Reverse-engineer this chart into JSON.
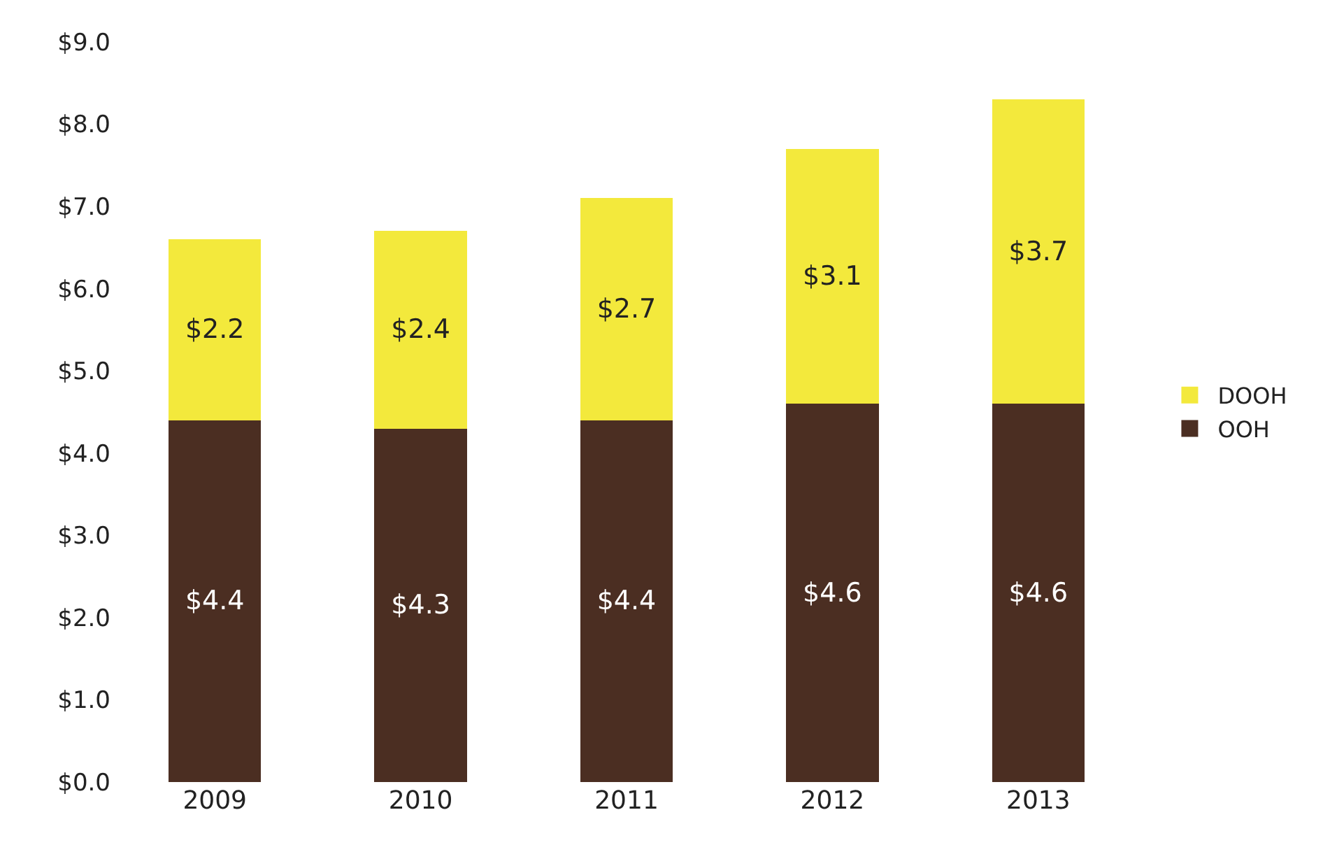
{
  "chart_data": {
    "type": "bar",
    "stacked": true,
    "categories": [
      "2009",
      "2010",
      "2011",
      "2012",
      "2013"
    ],
    "series": [
      {
        "name": "OOH",
        "color": "#4b2e22",
        "values": [
          4.4,
          4.3,
          4.4,
          4.6,
          4.6
        ],
        "value_labels": [
          "$4.4",
          "$4.3",
          "$4.4",
          "$4.6",
          "$4.6"
        ]
      },
      {
        "name": "DOOH",
        "color": "#f3e93c",
        "values": [
          2.2,
          2.4,
          2.7,
          3.1,
          3.7
        ],
        "value_labels": [
          "$2.2",
          "$2.4",
          "$2.7",
          "$3.1",
          "$3.7"
        ]
      }
    ],
    "ylim": [
      0,
      9
    ],
    "yticks": [
      {
        "value": 0,
        "label": "$0.0"
      },
      {
        "value": 1,
        "label": "$1.0"
      },
      {
        "value": 2,
        "label": "$2.0"
      },
      {
        "value": 3,
        "label": "$3.0"
      },
      {
        "value": 4,
        "label": "$4.0"
      },
      {
        "value": 5,
        "label": "$5.0"
      },
      {
        "value": 6,
        "label": "$6.0"
      },
      {
        "value": 7,
        "label": "$7.0"
      },
      {
        "value": 8,
        "label": "$8.0"
      },
      {
        "value": 9,
        "label": "$9.0"
      }
    ],
    "legend": "right"
  }
}
